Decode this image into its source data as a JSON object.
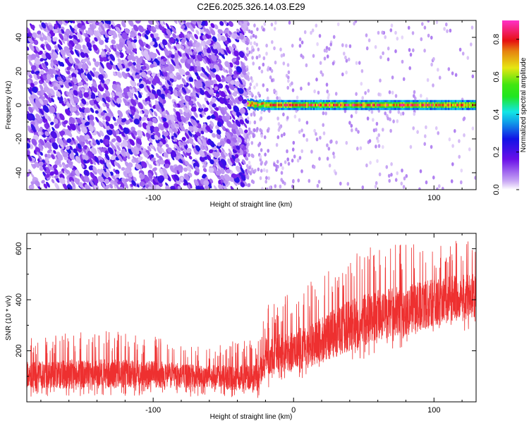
{
  "title": "C2E6.2025.326.14.03.E29",
  "colors": {
    "snr_line": "#ee3030",
    "noise_purple": "#7a1fe6",
    "signal_band": [
      "#1a18e0",
      "#19d6e6",
      "#2ee52e",
      "#f2e31a",
      "#e81b1b"
    ]
  },
  "chart_data": [
    {
      "type": "heatmap",
      "title": "C2E6.2025.326.14.03.E29",
      "xlabel": "Height of straight line (km)",
      "ylabel": "Frequency (Hz)",
      "xlim": [
        -190,
        130
      ],
      "ylim": [
        -50,
        50
      ],
      "x_ticks": [
        -100,
        0,
        100
      ],
      "x_tick_labels": [
        "-100",
        "",
        "100"
      ],
      "y_ticks": [
        -40,
        -20,
        0,
        20,
        40
      ],
      "y_tick_labels": [
        "-40",
        "-20",
        "0",
        "20",
        "40"
      ],
      "colorbar": {
        "label": "Normalized spectral amplitude",
        "range": [
          0.0,
          0.9
        ],
        "ticks": [
          0.0,
          0.2,
          0.4,
          0.6,
          0.8
        ],
        "tick_labels": [
          "0.0",
          "0.2",
          "0.4",
          "0.6",
          "0.8"
        ],
        "colormap": "rainbow-white"
      },
      "regions": [
        {
          "description_x_range": [
            -190,
            -33
          ],
          "content": "broadband noise",
          "amplitude_range": [
            0.05,
            0.25
          ]
        },
        {
          "description_x_range": [
            -33,
            130
          ],
          "content": "narrow band near 0 Hz",
          "frequency_halfwidth": 3,
          "amplitude_range": [
            0.3,
            0.9
          ]
        }
      ],
      "grid": false
    },
    {
      "type": "line",
      "xlabel": "Height of straight line (km)",
      "ylabel": "SNR (10 * v/v)",
      "xlim": [
        -190,
        130
      ],
      "ylim": [
        0,
        660
      ],
      "x_ticks": [
        -100,
        0,
        100
      ],
      "x_tick_labels": [
        "-100",
        "0",
        "100"
      ],
      "y_ticks": [
        200,
        400,
        600
      ],
      "y_tick_labels": [
        "200",
        "400",
        "600"
      ],
      "series": [
        {
          "x": [
            -190,
            -160,
            -130,
            -100,
            -70,
            -40,
            -25,
            -20,
            0,
            20,
            40,
            60,
            80,
            100,
            130
          ],
          "y_mean": [
            105,
            108,
            110,
            108,
            100,
            95,
            95,
            180,
            200,
            240,
            300,
            340,
            360,
            390,
            420
          ],
          "y_min": [
            20,
            20,
            25,
            20,
            20,
            15,
            15,
            40,
            80,
            120,
            150,
            180,
            210,
            240,
            270
          ],
          "y_max": [
            250,
            270,
            280,
            260,
            220,
            240,
            240,
            380,
            430,
            520,
            600,
            620,
            640,
            650,
            660
          ]
        }
      ],
      "grid": false
    }
  ]
}
